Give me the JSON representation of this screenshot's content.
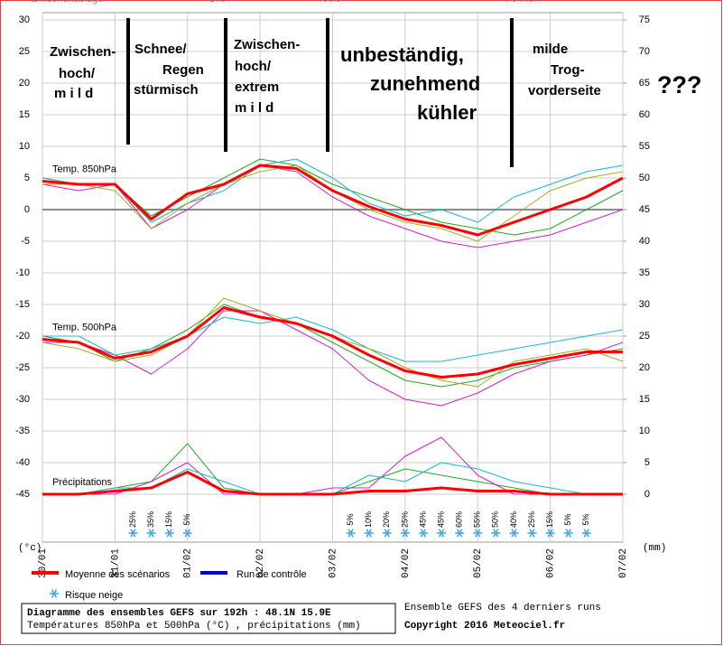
{
  "menu": [
    "Zwischenablage",
    "Bild",
    "Tools",
    "Formen"
  ],
  "chart_data": {
    "type": "line",
    "x": [
      0,
      12,
      24,
      36,
      48,
      60,
      72,
      84,
      96,
      108,
      120,
      132,
      144,
      156,
      168,
      180,
      192
    ],
    "xlim": [
      0,
      192
    ],
    "xticks": [
      {
        "value": 0,
        "label": "30/01"
      },
      {
        "value": 24,
        "label": "31/01"
      },
      {
        "value": 48,
        "label": "01/02"
      },
      {
        "value": 72,
        "label": "02/02"
      },
      {
        "value": 96,
        "label": "03/02"
      },
      {
        "value": 120,
        "label": "04/02"
      },
      {
        "value": 144,
        "label": "05/02"
      },
      {
        "value": 168,
        "label": "06/02"
      },
      {
        "value": 192,
        "label": "07/02"
      }
    ],
    "ylim": [
      -45,
      30
    ],
    "yticks": [
      30,
      25,
      20,
      15,
      10,
      5,
      0,
      -5,
      -10,
      -15,
      -20,
      -25,
      -30,
      -35,
      -40,
      -45
    ],
    "y2lim": [
      0,
      75
    ],
    "y2ticks": [
      75,
      70,
      65,
      60,
      55,
      50,
      45,
      40,
      35,
      30,
      25,
      20,
      15,
      10,
      5,
      0
    ],
    "ylabel": "(°c)",
    "y2label": "(mm)",
    "grid": true,
    "series": [
      {
        "label": "Temp. 850hPa",
        "color": "#ff0000",
        "values": [
          4.5,
          4,
          4,
          -1.5,
          2.5,
          4,
          7,
          6.5,
          3,
          0.5,
          -1.5,
          -2.5,
          -4,
          -2,
          0,
          2,
          5
        ]
      },
      {
        "label": "Temp. 500hPa",
        "color": "#ff0000",
        "values": [
          -20.5,
          -21,
          -23.5,
          -22.5,
          -20,
          -15.5,
          -17,
          -18,
          -20,
          -23,
          -25.5,
          -26.5,
          -26,
          -24.5,
          -23.5,
          -22.5,
          -22.5
        ]
      },
      {
        "label": "Précipitations",
        "color": "#ff0000",
        "axis": "y2",
        "values": [
          0,
          0,
          0.5,
          1,
          3.5,
          0.5,
          0,
          0,
          0,
          0.5,
          0.5,
          1,
          0.5,
          0.5,
          0,
          0,
          0
        ]
      }
    ],
    "members": [
      {
        "color": "#22aa22",
        "values": [
          5,
          4,
          4,
          -1,
          2,
          5,
          8,
          7,
          4,
          2,
          0,
          -2,
          -3,
          -4,
          -3,
          0,
          3
        ]
      },
      {
        "color": "#cc22cc",
        "values": [
          4,
          3,
          4,
          -3,
          0,
          4,
          7,
          6,
          2,
          -1,
          -3,
          -5,
          -6,
          -5,
          -4,
          -2,
          0
        ]
      },
      {
        "color": "#1fb5c8",
        "values": [
          5,
          4,
          4,
          -2,
          1,
          3,
          7,
          8,
          5,
          1,
          -1,
          0,
          -2,
          2,
          4,
          6,
          7
        ]
      },
      {
        "color": "#aaaa22",
        "values": [
          4,
          4,
          3,
          -3,
          1,
          4,
          6,
          7,
          3,
          0,
          -2,
          -3,
          -5,
          -1,
          3,
          5,
          6
        ]
      },
      {
        "color": "#22aa22",
        "values": [
          -20,
          -21,
          -24,
          -22,
          -19,
          -15,
          -17,
          -18,
          -21,
          -24,
          -27,
          -28,
          -27,
          -25,
          -24,
          -23,
          -22
        ]
      },
      {
        "color": "#cc22cc",
        "values": [
          -21,
          -21,
          -23,
          -26,
          -22,
          -16,
          -16,
          -19,
          -22,
          -27,
          -30,
          -31,
          -29,
          -26,
          -24,
          -23,
          -21
        ]
      },
      {
        "color": "#1fb5c8",
        "values": [
          -20,
          -20,
          -23,
          -22,
          -20,
          -17,
          -18,
          -17,
          -19,
          -22,
          -24,
          -24,
          -23,
          -22,
          -21,
          -20,
          -19
        ]
      },
      {
        "color": "#aaaa22",
        "values": [
          -21,
          -22,
          -24,
          -23,
          -20,
          -14,
          -16,
          -18,
          -20,
          -22,
          -25,
          -27,
          -28,
          -24,
          -23,
          -22,
          -24
        ]
      },
      {
        "color": "#22aa22",
        "axis": "y2",
        "values": [
          0,
          0,
          1,
          2,
          8,
          1,
          0,
          0,
          0,
          2,
          4,
          3,
          2,
          1,
          0,
          0,
          0
        ]
      },
      {
        "color": "#cc22cc",
        "axis": "y2",
        "values": [
          0,
          0,
          0,
          2,
          5,
          0,
          0,
          0,
          1,
          1,
          6,
          9,
          3,
          0,
          0,
          0,
          0
        ]
      },
      {
        "color": "#1fb5c8",
        "axis": "y2",
        "values": [
          0,
          0,
          1,
          1,
          4,
          2,
          0,
          0,
          0,
          3,
          2,
          5,
          4,
          2,
          1,
          0,
          0
        ]
      }
    ],
    "snow_risk": {
      "x": [
        30,
        36,
        42,
        48,
        102,
        108,
        114,
        120,
        126,
        132,
        138,
        144,
        150,
        156,
        162,
        168,
        174,
        180
      ],
      "values": [
        25,
        35,
        15,
        5,
        5,
        10,
        20,
        25,
        45,
        45,
        60,
        55,
        50,
        40,
        25,
        15,
        5,
        5
      ],
      "value_labels": [
        "25%",
        "35%",
        "15%",
        "5%",
        "5%",
        "10%",
        "20%",
        "25%",
        "45%",
        "45%",
        "60%",
        "55%",
        "50%",
        "40%",
        "25%",
        "15%",
        "5%",
        "5%"
      ]
    },
    "legend": [
      {
        "name": "Moyenne des scénarios",
        "color": "#ff0000"
      },
      {
        "name": "Run de contrôle",
        "color": "#0000cc"
      }
    ],
    "snow_legend": "Risque neige",
    "annotations": [
      {
        "lines": [
          "Zwischen-",
          "hoch/",
          "m i l d"
        ]
      },
      {
        "lines": [
          "Schnee/",
          "Regen",
          "stürmisch"
        ]
      },
      {
        "lines": [
          "Zwischen-",
          "hoch/",
          "extrem",
          "m i l d"
        ]
      },
      {
        "lines": [
          "unbeständig,",
          "zunehmend",
          "kühler"
        ]
      },
      {
        "lines": [
          "milde",
          "Trog-",
          "vorderseite"
        ]
      },
      {
        "lines": [
          "???"
        ]
      }
    ]
  },
  "footer": {
    "title": "Diagramme des ensembles GEFS sur 192h : 48.1N 15.9E",
    "subtitle": "Températures 850hPa et 500hPa (°C) , précipitations (mm)",
    "runs": "Ensemble GEFS des 4 derniers runs",
    "copyright": "Copyright 2016 Meteociel.fr"
  }
}
